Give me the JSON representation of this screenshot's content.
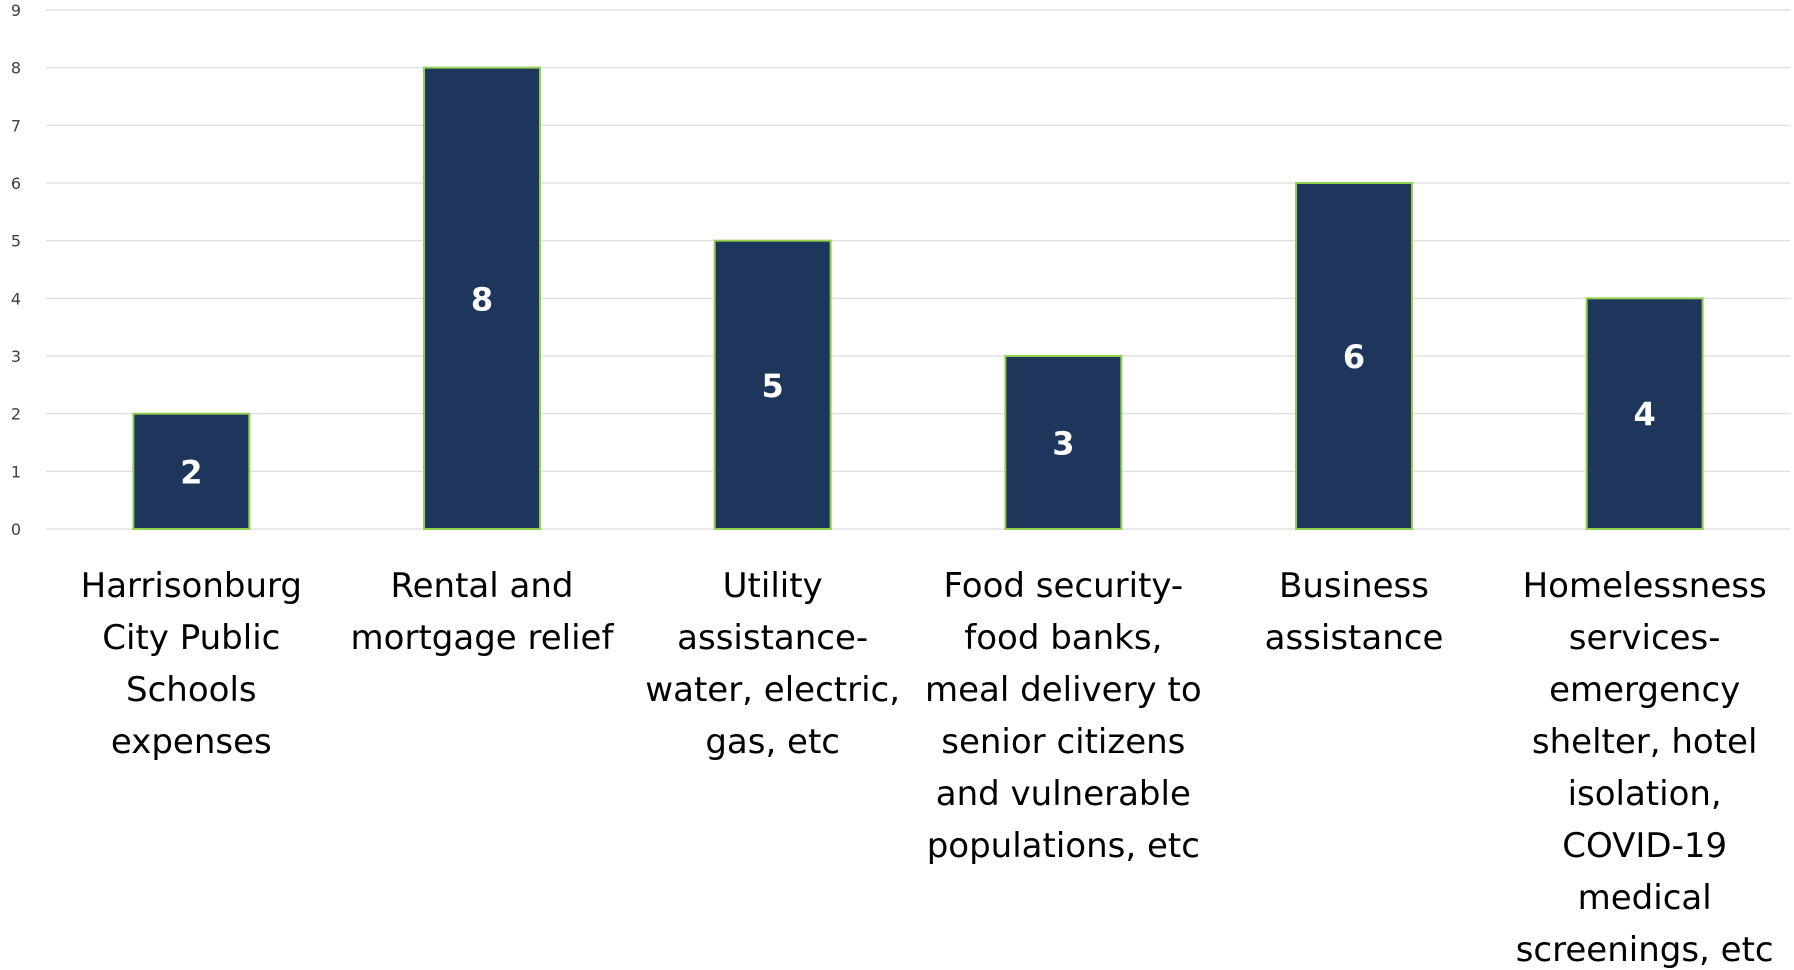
{
  "chart_data": {
    "type": "bar",
    "title": "",
    "xlabel": "",
    "ylabel": "",
    "ylim": [
      0,
      9
    ],
    "y_ticks": [
      "0",
      "1",
      "2",
      "3",
      "4",
      "5",
      "6",
      "7",
      "8",
      "9"
    ],
    "grid": true,
    "legend": "none",
    "categories": [
      "Harrisonburg City Public Schools expenses",
      "Rental and mortgage relief",
      "Utility assistance- water, electric, gas, etc",
      "Food security- food banks, meal delivery to senior citizens and vulnerable populations, etc",
      "Business assistance",
      "Homelessness services- emergency shelter, hotel isolation, COVID-19 medical screenings, etc"
    ],
    "category_label_lines": [
      [
        "Harrisonburg",
        "City Public",
        "Schools",
        "expenses"
      ],
      [
        "Rental and",
        "mortgage relief"
      ],
      [
        "Utility",
        "assistance-",
        "water, electric,",
        "gas, etc"
      ],
      [
        "Food security-",
        "food banks,",
        "meal delivery to",
        "senior citizens",
        "and vulnerable",
        "populations, etc"
      ],
      [
        "Business",
        "assistance"
      ],
      [
        "Homelessness",
        "services-",
        "emergency",
        "shelter, hotel",
        "isolation,",
        "COVID-19",
        "medical",
        "screenings, etc"
      ]
    ],
    "values": [
      2,
      8,
      5,
      3,
      6,
      4
    ],
    "data_labels": [
      "2",
      "8",
      "5",
      "3",
      "6",
      "4"
    ],
    "colors": {
      "bar_fill": "#1f365c",
      "bar_stroke": "#92d050",
      "gridline": "#d9d9d9",
      "data_label": "#ffffff"
    }
  }
}
